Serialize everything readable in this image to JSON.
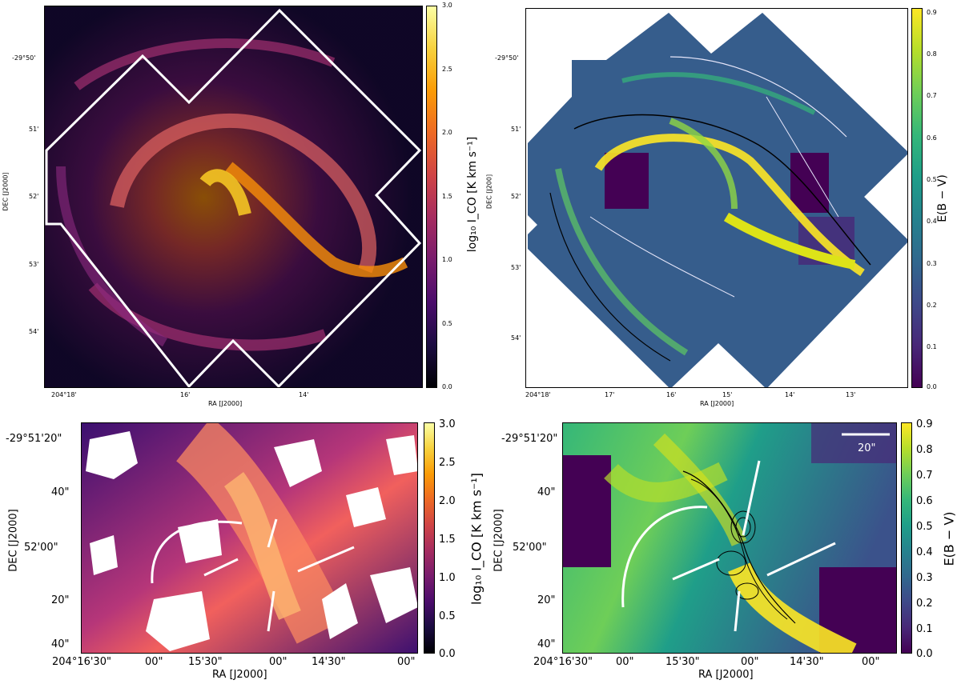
{
  "panels": {
    "top_left": {
      "xlabel": "RA [J2000]",
      "ylabel": "DEC [J2000]",
      "xticks": [
        "204°18'",
        "16'",
        "14'"
      ],
      "yticks": [
        "-29°50'",
        "51'",
        "52'",
        "53'",
        "54'"
      ],
      "colorbar": {
        "label": "log$_{10}$ I_CO [K km s$^{-1}$]",
        "label_display": "log₁₀ I_CO [K km s⁻¹]",
        "ticks": [
          "3.0",
          "2.5",
          "2.0",
          "1.5",
          "1.0",
          "0.5",
          "0.0"
        ],
        "colormap": "inferno"
      }
    },
    "top_right": {
      "xlabel": "RA [J2000]",
      "ylabel": "DEC [J200]",
      "xticks": [
        "204°18'",
        "17'",
        "16'",
        "15'",
        "14'",
        "13'"
      ],
      "yticks": [
        "-29°50'",
        "51'",
        "52'",
        "53'",
        "54'"
      ],
      "colorbar": {
        "label_display": "E(B − V)",
        "ticks": [
          "0.9",
          "0.8",
          "0.7",
          "0.6",
          "0.5",
          "0.4",
          "0.3",
          "0.2",
          "0.1",
          "0.0"
        ],
        "colormap": "viridis"
      }
    },
    "bottom_left": {
      "xlabel": "RA [J2000]",
      "ylabel": "DEC [J2000]",
      "xticks": [
        "204°16'30\"",
        "00\"",
        "15'30\"",
        "00\"",
        "14'30\"",
        "00\""
      ],
      "yticks": [
        "-29°51'20\"",
        "40\"",
        "52'00\"",
        "20\"",
        "40\""
      ],
      "colorbar": {
        "label_display": "log₁₀ I_CO [K km s⁻¹]",
        "ticks": [
          "3.0",
          "2.5",
          "2.0",
          "1.5",
          "1.0",
          "0.5",
          "0.0"
        ],
        "colormap": "inferno"
      }
    },
    "bottom_right": {
      "xlabel": "RA [J2000]",
      "ylabel": "DEC [J2000]",
      "xticks": [
        "204°16'30\"",
        "00\"",
        "15'30\"",
        "00\"",
        "14'30\"",
        "00\""
      ],
      "yticks": [
        "-29°51'20\"",
        "40\"",
        "52'00\"",
        "20\"",
        "40\""
      ],
      "scalebar_label": "20\"",
      "colorbar": {
        "label_display": "E(B − V)",
        "ticks": [
          "0.9",
          "0.8",
          "0.7",
          "0.6",
          "0.5",
          "0.4",
          "0.3",
          "0.2",
          "0.1",
          "0.0"
        ],
        "colormap": "viridis"
      }
    }
  },
  "colors": {
    "inferno_low": "#000004",
    "inferno_mid": "#b63679",
    "inferno_high": "#fcffa4",
    "viridis_low": "#440154",
    "viridis_mid": "#21918c",
    "viridis_high": "#fde725",
    "outline": "#ffffff"
  }
}
